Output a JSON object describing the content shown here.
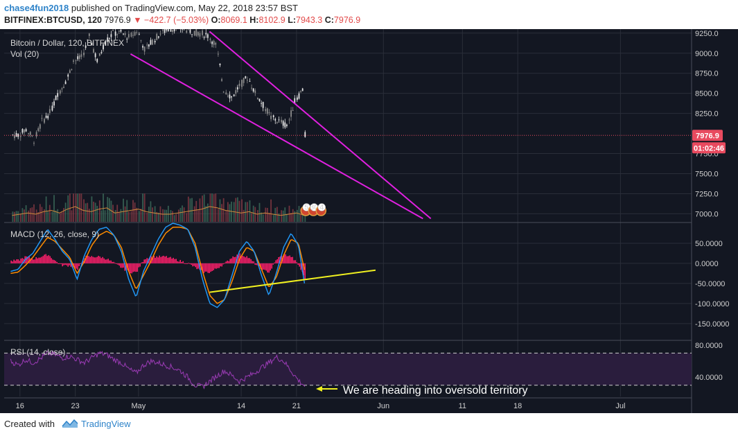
{
  "header": {
    "author": "chase4fun2018",
    "published_text": "published on TradingView.com, May 22, 2018 23:57 BST",
    "symbol": "BITFINEX:BTCUSD, 120",
    "last": "7976.9",
    "change": "▼ −422.7 (−5.03%)",
    "open_label": "O:",
    "open": "8069.1",
    "high_label": "H:",
    "high": "8102.9",
    "low_label": "L:",
    "low": "7943.3",
    "close_label": "C:",
    "close": "7976.9"
  },
  "footer": {
    "created_with": "Created with",
    "brand": "TradingView"
  },
  "colors": {
    "background": "#131722",
    "grid": "#2a2e39",
    "up": "#e6e6e6",
    "down": "#8c8c8c",
    "wedge": "#e020e0",
    "trend": "#f0f020",
    "macd_line": "#2196f3",
    "signal_line": "#ff8c00",
    "histogram": "#ff1f6b",
    "rsi_line": "#9b3bb5",
    "rsi_band": "#2a1d3d",
    "price_tag": "#e84a5f"
  },
  "chart_data": {
    "type": "candlestick",
    "price_panel": {
      "label": "Bitcoin / Dollar, 120, BITFINEX",
      "vol_label": "Vol (20)",
      "y_ticks": [
        "9250.0",
        "9000.0",
        "8750.0",
        "8500.0",
        "8250.0",
        "7750.0",
        "7500.0",
        "7250.0",
        "7000.0"
      ],
      "ylim": [
        6900,
        9300
      ],
      "last_price": "7976.9",
      "countdown": "01:02:46",
      "event_badges": [
        "5",
        "30",
        "4"
      ],
      "series": [
        {
          "date": "2018-04-15",
          "close": 7980
        },
        {
          "date": "2018-04-16",
          "close": 8050
        },
        {
          "date": "2018-04-17",
          "close": 7920
        },
        {
          "date": "2018-04-18",
          "close": 8150
        },
        {
          "date": "2018-04-19",
          "close": 8260
        },
        {
          "date": "2018-04-20",
          "close": 8500
        },
        {
          "date": "2018-04-21",
          "close": 8650
        },
        {
          "date": "2018-04-22",
          "close": 8900
        },
        {
          "date": "2018-04-23",
          "close": 8950
        },
        {
          "date": "2018-04-24",
          "close": 9200
        },
        {
          "date": "2018-04-25",
          "close": 8900
        },
        {
          "date": "2018-04-26",
          "close": 9150
        },
        {
          "date": "2018-04-27",
          "close": 9250
        },
        {
          "date": "2018-04-28",
          "close": 9250
        },
        {
          "date": "2018-04-29",
          "close": 9200
        },
        {
          "date": "2018-04-30",
          "close": 9280
        },
        {
          "date": "2018-05-01",
          "close": 9050
        },
        {
          "date": "2018-05-02",
          "close": 9150
        },
        {
          "date": "2018-05-03",
          "close": 9250
        },
        {
          "date": "2018-05-04",
          "close": 9300
        },
        {
          "date": "2018-05-05",
          "close": 9320
        },
        {
          "date": "2018-05-06",
          "close": 9300
        },
        {
          "date": "2018-05-07",
          "close": 9270
        },
        {
          "date": "2018-05-08",
          "close": 9250
        },
        {
          "date": "2018-05-09",
          "close": 9220
        },
        {
          "date": "2018-05-10",
          "close": 9100
        },
        {
          "date": "2018-05-11",
          "close": 8550
        },
        {
          "date": "2018-05-12",
          "close": 8450
        },
        {
          "date": "2018-05-13",
          "close": 8600
        },
        {
          "date": "2018-05-14",
          "close": 8700
        },
        {
          "date": "2018-05-15",
          "close": 8500
        },
        {
          "date": "2018-05-16",
          "close": 8350
        },
        {
          "date": "2018-05-17",
          "close": 8200
        },
        {
          "date": "2018-05-18",
          "close": 8150
        },
        {
          "date": "2018-05-19",
          "close": 8100
        },
        {
          "date": "2018-05-20",
          "close": 8400
        },
        {
          "date": "2018-05-21",
          "close": 8550
        },
        {
          "date": "2018-05-22",
          "close": 7976.9
        }
      ],
      "volume": [
        0.25,
        0.3,
        0.35,
        0.3,
        0.4,
        0.45,
        0.35,
        0.5,
        0.6,
        0.45,
        0.4,
        0.5,
        0.55,
        0.35,
        0.4,
        0.45,
        0.5,
        0.4,
        0.35,
        0.3,
        0.3,
        0.35,
        0.4,
        0.45,
        0.5,
        0.6,
        0.55,
        0.45,
        0.4,
        0.35,
        0.4,
        0.3,
        0.35,
        0.3,
        0.25,
        0.3,
        0.35,
        0.25
      ],
      "falling_wedge": {
        "upper": [
          [
            "2018-05-10",
            9270
          ],
          [
            "2018-06-07",
            6940
          ]
        ],
        "lower": [
          [
            "2018-04-30",
            8990
          ],
          [
            "2018-06-06",
            6940
          ]
        ]
      }
    },
    "macd_panel": {
      "label": "MACD (12, 26, close, 9)",
      "y_ticks": [
        "50.0000",
        "0.0000",
        "-50.0000",
        "-100.0000",
        "-150.0000"
      ],
      "ylim": [
        -190,
        100
      ],
      "macd": [
        -20,
        -15,
        10,
        25,
        55,
        85,
        60,
        30,
        10,
        -40,
        20,
        60,
        85,
        90,
        70,
        30,
        -40,
        -85,
        -20,
        20,
        60,
        90,
        100,
        95,
        85,
        40,
        -40,
        -100,
        -110,
        -90,
        -30,
        30,
        55,
        30,
        -30,
        -80,
        -25,
        40,
        75,
        45,
        -70
      ],
      "signal": [
        -25,
        -22,
        -5,
        15,
        40,
        65,
        55,
        35,
        15,
        -25,
        5,
        45,
        70,
        80,
        70,
        40,
        -20,
        -65,
        -30,
        5,
        45,
        75,
        90,
        90,
        85,
        50,
        -20,
        -80,
        -100,
        -90,
        -45,
        10,
        40,
        30,
        -15,
        -60,
        -35,
        20,
        60,
        50,
        -30
      ],
      "trendline": [
        [
          "2018-05-10",
          -72
        ],
        [
          "2018-05-31",
          -17
        ]
      ],
      "histogram": "macd - signal"
    },
    "rsi_panel": {
      "label": "RSI (14, close)",
      "y_ticks": [
        "80.0000",
        "40.0000"
      ],
      "ylim": [
        16,
        85
      ],
      "upper_band": 70,
      "lower_band": 30,
      "values": [
        60,
        55,
        62,
        58,
        63,
        70,
        68,
        64,
        66,
        62,
        58,
        64,
        70,
        68,
        62,
        58,
        50,
        45,
        55,
        60,
        58,
        55,
        52,
        48,
        40,
        30,
        28,
        35,
        42,
        48,
        42,
        35,
        40,
        45,
        52,
        58,
        65,
        60,
        48,
        36,
        28
      ],
      "annotation": "We are heading into oversold territory"
    },
    "x_ticks": [
      {
        "label": "16",
        "date": "2018-04-16"
      },
      {
        "label": "23",
        "date": "2018-04-23"
      },
      {
        "label": "May",
        "date": "2018-05-01"
      },
      {
        "label": "14",
        "date": "2018-05-14"
      },
      {
        "label": "21",
        "date": "2018-05-21"
      },
      {
        "label": "Jun",
        "date": "2018-06-01"
      },
      {
        "label": "11",
        "date": "2018-06-11"
      },
      {
        "label": "18",
        "date": "2018-06-18"
      },
      {
        "label": "Jul",
        "date": "2018-07-01"
      }
    ],
    "xlim": [
      "2018-04-14",
      "2018-07-10"
    ]
  }
}
